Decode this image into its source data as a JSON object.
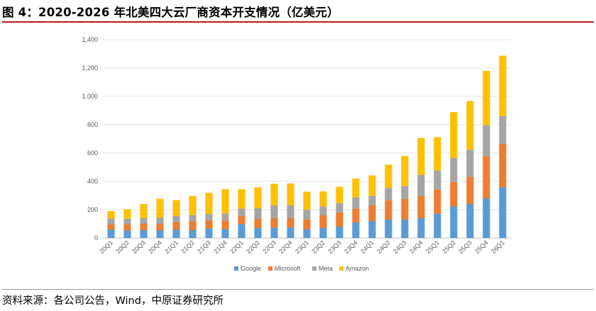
{
  "figure": {
    "title": "图 4：2020-2026 年北美四大云厂商资本开支情况（亿美元）",
    "source": "资料来源：各公司公告，Wind，中原证券研究所"
  },
  "chart_data": {
    "type": "bar",
    "stacked": true,
    "title": "",
    "xlabel": "",
    "ylabel": "",
    "ylim": [
      0,
      1400
    ],
    "yticks": [
      "0",
      "200",
      "400",
      "600",
      "800",
      "1,000",
      "1,200",
      "1,400"
    ],
    "grid": true,
    "legend_position": "bottom",
    "categories": [
      "20Q1",
      "20Q2",
      "20Q3",
      "20Q4",
      "21Q1",
      "21Q2",
      "21Q3",
      "21Q4",
      "22Q1",
      "22Q2",
      "22Q3",
      "22Q4",
      "23Q1",
      "23Q2",
      "23Q3",
      "23Q4",
      "24Q1",
      "24Q2",
      "24Q3",
      "24Q4",
      "25Q1",
      "25Q2",
      "25Q3",
      "25Q4",
      "26Q1"
    ],
    "series": [
      {
        "name": "Google",
        "color": "#5b9bd5",
        "values": [
          60,
          53,
          55,
          55,
          60,
          55,
          68,
          63,
          98,
          70,
          73,
          73,
          63,
          70,
          80,
          110,
          120,
          130,
          130,
          140,
          172,
          223,
          240,
          280,
          357
        ]
      },
      {
        "name": "Microsoft",
        "color": "#ed7d31",
        "values": [
          37,
          45,
          45,
          45,
          53,
          65,
          58,
          60,
          58,
          65,
          67,
          67,
          68,
          90,
          100,
          98,
          110,
          138,
          148,
          158,
          168,
          173,
          193,
          297,
          308
        ]
      },
      {
        "name": "Meta",
        "color": "#a5a5a5",
        "values": [
          38,
          38,
          40,
          43,
          42,
          43,
          45,
          50,
          52,
          75,
          90,
          92,
          68,
          63,
          67,
          79,
          67,
          85,
          88,
          148,
          137,
          170,
          191,
          220,
          196
        ]
      },
      {
        "name": "Amazon",
        "color": "#ffc000",
        "values": [
          55,
          68,
          100,
          134,
          113,
          134,
          148,
          172,
          137,
          148,
          153,
          153,
          128,
          106,
          115,
          133,
          145,
          165,
          213,
          260,
          235,
          323,
          343,
          383,
          426
        ]
      }
    ]
  }
}
